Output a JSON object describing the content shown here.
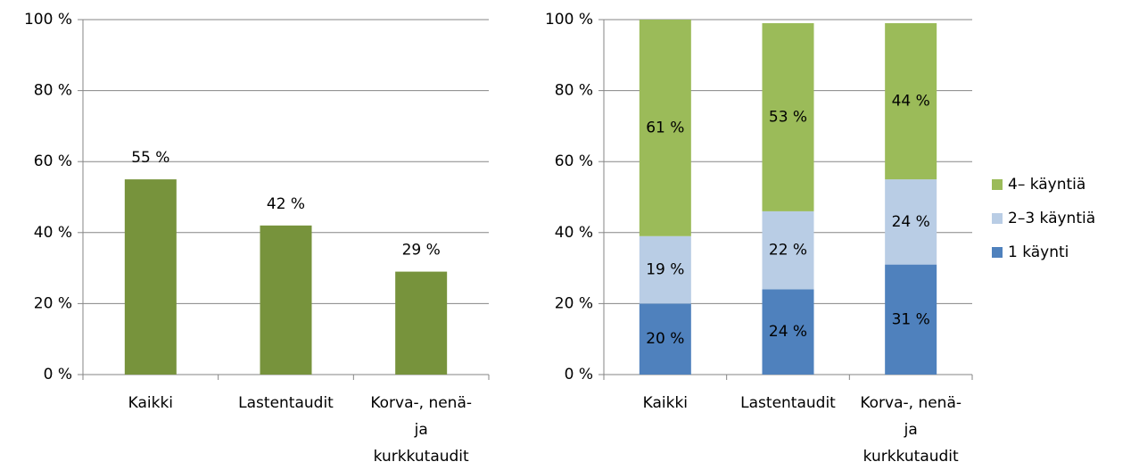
{
  "chart_data": [
    {
      "type": "bar",
      "categories": [
        "Kaikki",
        "Lastentaudit",
        "Korva-, nenä- ja kurkkutaudit"
      ],
      "values": [
        55,
        42,
        29
      ],
      "value_labels": [
        "55 %",
        "42 %",
        "29 %"
      ],
      "color": "#77933c",
      "ylim": [
        0,
        100
      ],
      "yticks": [
        {
          "value": 0,
          "label": "0 %"
        },
        {
          "value": 20,
          "label": "20 %"
        },
        {
          "value": 40,
          "label": "40 %"
        },
        {
          "value": 60,
          "label": "60 %"
        },
        {
          "value": 80,
          "label": "80 %"
        },
        {
          "value": 100,
          "label": "100 %"
        }
      ],
      "grid": true
    },
    {
      "type": "stacked_bar",
      "categories": [
        "Kaikki",
        "Lastentaudit",
        "Korva-, nenä- ja kurkkutaudit"
      ],
      "series": [
        {
          "name": "1 käynti",
          "color": "#4f81bd",
          "values": [
            20,
            24,
            31
          ],
          "value_labels": [
            "20 %",
            "24 %",
            "31 %"
          ]
        },
        {
          "name": "2–3 käyntiä",
          "color": "#b9cde5",
          "values": [
            19,
            22,
            24
          ],
          "value_labels": [
            "19 %",
            "22 %",
            "24 %"
          ]
        },
        {
          "name": "4– käyntiä",
          "color": "#9bbb59",
          "values": [
            61,
            53,
            44
          ],
          "value_labels": [
            "61 %",
            "53 %",
            "44 %"
          ]
        }
      ],
      "ylim": [
        0,
        100
      ],
      "yticks": [
        {
          "value": 0,
          "label": "0 %"
        },
        {
          "value": 20,
          "label": "20 %"
        },
        {
          "value": 40,
          "label": "40 %"
        },
        {
          "value": 60,
          "label": "60 %"
        },
        {
          "value": 80,
          "label": "80 %"
        },
        {
          "value": 100,
          "label": "100 %"
        }
      ],
      "grid": true,
      "legend": "right"
    }
  ]
}
